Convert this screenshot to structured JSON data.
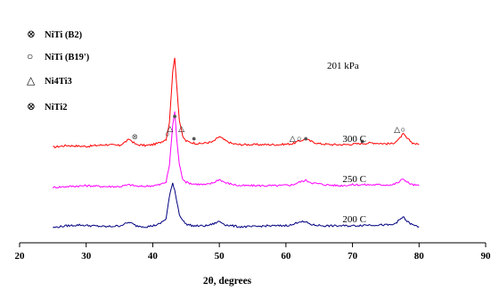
{
  "chart_data": {
    "type": "line",
    "xlabel": "2θ, degrees",
    "ylabel": "",
    "xlim": [
      20,
      90
    ],
    "xticks": [
      "20",
      "30",
      "40",
      "50",
      "60",
      "70",
      "80",
      "90"
    ],
    "grid": false,
    "annotation": "201 kPa",
    "legend_position": "top-left",
    "legend": [
      {
        "symbol": "⊗",
        "label": "NiTi (B2)",
        "filled": true
      },
      {
        "symbol": "○",
        "label": "NiTi (B19')",
        "filled": false
      },
      {
        "symbol": "△",
        "label": "Ni4Ti3",
        "filled": false
      },
      {
        "symbol": "⊗",
        "label": "NiTi2",
        "filled": false
      }
    ],
    "series": [
      {
        "name": "300 C",
        "color": "#ff0000",
        "offset": 100,
        "points": [
          [
            25,
            0
          ],
          [
            27,
            2
          ],
          [
            30,
            1
          ],
          [
            33,
            3
          ],
          [
            35,
            2
          ],
          [
            36.5,
            9
          ],
          [
            37.5,
            3
          ],
          [
            39,
            2
          ],
          [
            40,
            3
          ],
          [
            41,
            5
          ],
          [
            42,
            9
          ],
          [
            42.5,
            28
          ],
          [
            43,
            85
          ],
          [
            43.3,
            100
          ],
          [
            43.6,
            70
          ],
          [
            44,
            30
          ],
          [
            44.5,
            12
          ],
          [
            45,
            7
          ],
          [
            46,
            5
          ],
          [
            47,
            4
          ],
          [
            48,
            5
          ],
          [
            49,
            6
          ],
          [
            50,
            12
          ],
          [
            51,
            7
          ],
          [
            52,
            4
          ],
          [
            53,
            3
          ],
          [
            55,
            3
          ],
          [
            57,
            3
          ],
          [
            59,
            3
          ],
          [
            61,
            4
          ],
          [
            62,
            7
          ],
          [
            63,
            9
          ],
          [
            64,
            6
          ],
          [
            65,
            4
          ],
          [
            67,
            3
          ],
          [
            69,
            3
          ],
          [
            71,
            4
          ],
          [
            73,
            5
          ],
          [
            75,
            4
          ],
          [
            76,
            4
          ],
          [
            77,
            9
          ],
          [
            77.6,
            15
          ],
          [
            78.2,
            10
          ],
          [
            79,
            5
          ],
          [
            80,
            3
          ]
        ]
      },
      {
        "name": "250 C",
        "color": "#ff00ff",
        "offset": 55,
        "points": [
          [
            25,
            0
          ],
          [
            27,
            1
          ],
          [
            30,
            2
          ],
          [
            33,
            1
          ],
          [
            35,
            1
          ],
          [
            36.5,
            3
          ],
          [
            38,
            1
          ],
          [
            40,
            2
          ],
          [
            41,
            3
          ],
          [
            42,
            6
          ],
          [
            42.5,
            25
          ],
          [
            43,
            70
          ],
          [
            43.3,
            85
          ],
          [
            43.6,
            55
          ],
          [
            44,
            25
          ],
          [
            44.5,
            10
          ],
          [
            45,
            6
          ],
          [
            46,
            4
          ],
          [
            48,
            3
          ],
          [
            49,
            5
          ],
          [
            50,
            9
          ],
          [
            51,
            5
          ],
          [
            53,
            2
          ],
          [
            55,
            2
          ],
          [
            57,
            2
          ],
          [
            59,
            2
          ],
          [
            61,
            3
          ],
          [
            62,
            6
          ],
          [
            63,
            8
          ],
          [
            64,
            5
          ],
          [
            66,
            3
          ],
          [
            68,
            2
          ],
          [
            70,
            3
          ],
          [
            72,
            3
          ],
          [
            74,
            3
          ],
          [
            76,
            3
          ],
          [
            77,
            6
          ],
          [
            77.6,
            10
          ],
          [
            78.2,
            6
          ],
          [
            79,
            3
          ],
          [
            80,
            2
          ]
        ]
      },
      {
        "name": "200 C",
        "color": "#000080",
        "offset": 10,
        "points": [
          [
            25,
            0
          ],
          [
            27,
            2
          ],
          [
            29,
            3
          ],
          [
            31,
            2
          ],
          [
            33,
            1
          ],
          [
            35,
            2
          ],
          [
            36.5,
            6
          ],
          [
            37.5,
            2
          ],
          [
            39,
            1
          ],
          [
            40,
            2
          ],
          [
            41,
            4
          ],
          [
            42,
            10
          ],
          [
            42.5,
            35
          ],
          [
            43,
            50
          ],
          [
            43.3,
            42
          ],
          [
            43.6,
            30
          ],
          [
            44,
            15
          ],
          [
            44.5,
            8
          ],
          [
            45,
            4
          ],
          [
            46,
            2
          ],
          [
            48,
            2
          ],
          [
            49,
            4
          ],
          [
            50,
            7
          ],
          [
            51,
            3
          ],
          [
            53,
            1
          ],
          [
            55,
            1
          ],
          [
            57,
            2
          ],
          [
            59,
            2
          ],
          [
            61,
            3
          ],
          [
            62,
            7
          ],
          [
            63,
            6
          ],
          [
            64,
            3
          ],
          [
            66,
            2
          ],
          [
            68,
            2
          ],
          [
            70,
            2
          ],
          [
            72,
            3
          ],
          [
            74,
            3
          ],
          [
            76,
            3
          ],
          [
            77,
            8
          ],
          [
            77.6,
            12
          ],
          [
            78.2,
            7
          ],
          [
            79,
            3
          ],
          [
            80,
            1
          ]
        ]
      }
    ],
    "peak_markers": [
      {
        "x": 43.3,
        "y": 132,
        "symbol": "●"
      },
      {
        "x": 42.6,
        "y": 118,
        "symbol": "△"
      },
      {
        "x": 44.3,
        "y": 118,
        "symbol": "△"
      },
      {
        "x": 42.2,
        "y": 112,
        "symbol": "○"
      },
      {
        "x": 37.3,
        "y": 109,
        "symbol": "⊗"
      },
      {
        "x": 46.2,
        "y": 107,
        "symbol": "●"
      },
      {
        "x": 61.0,
        "y": 107,
        "symbol": "△"
      },
      {
        "x": 62.0,
        "y": 107,
        "symbol": "○"
      },
      {
        "x": 63.0,
        "y": 107,
        "symbol": "●"
      },
      {
        "x": 71.5,
        "y": 104,
        "symbol": "●"
      },
      {
        "x": 76.7,
        "y": 117,
        "symbol": "△"
      },
      {
        "x": 77.6,
        "y": 117,
        "symbol": "○"
      }
    ]
  }
}
